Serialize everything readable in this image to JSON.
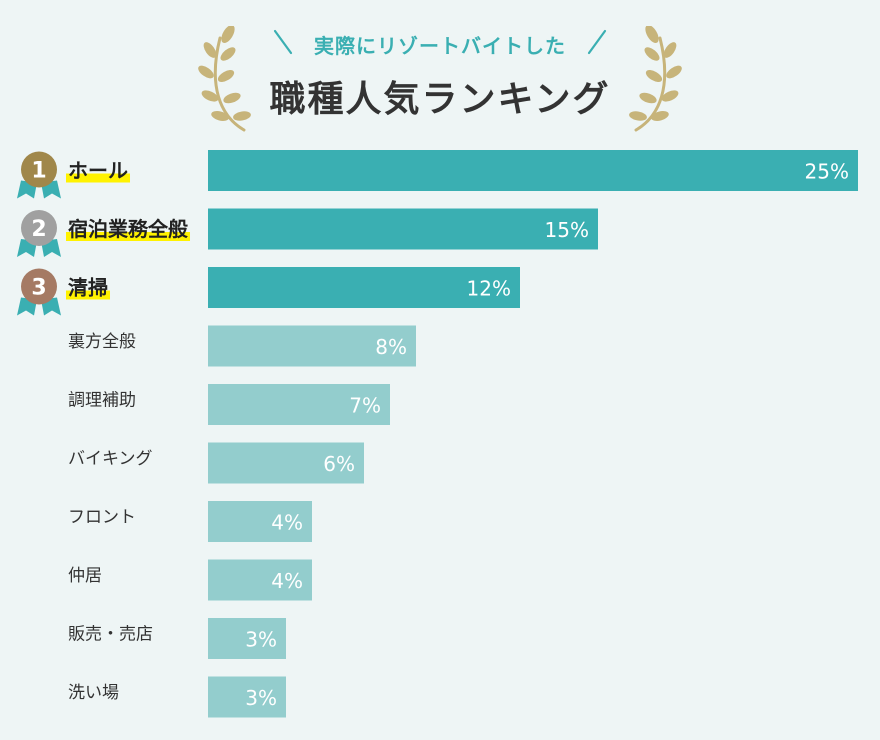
{
  "header": {
    "subtitle": "実際にリゾートバイトした",
    "title": "職種人気ランキング"
  },
  "colors": {
    "top_bar": "#3aafb2",
    "other_bar": "#93cdcd",
    "highlight": "#fff200",
    "gold": "#a0874a",
    "silver": "#a0a0a0",
    "bronze": "#a57a64",
    "ribbon": "#3aafb2",
    "laurel": "#c7b47a"
  },
  "chart_data": {
    "type": "bar",
    "orientation": "horizontal",
    "categories": [
      "ホール",
      "宿泊業務全般",
      "清掃",
      "裏方全般",
      "調理補助",
      "バイキング",
      "フロント",
      "仲居",
      "販売・売店",
      "洗い場"
    ],
    "values": [
      25,
      15,
      12,
      8,
      7,
      6,
      4,
      4,
      3,
      3
    ],
    "value_labels": [
      "25%",
      "15%",
      "12%",
      "8%",
      "7%",
      "6%",
      "4%",
      "4%",
      "3%",
      "3%"
    ],
    "ranks": [
      "1",
      "2",
      "3"
    ],
    "unit": "%",
    "xlim": [
      0,
      25
    ]
  }
}
